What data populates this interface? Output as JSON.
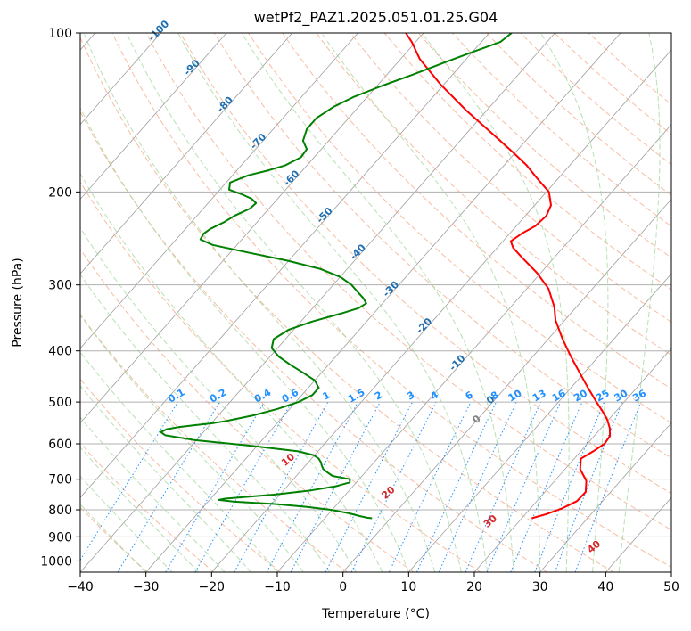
{
  "chart_data": {
    "type": "line",
    "diagram": "skew-t log-p",
    "title": "wetPf2_PAZ1.2025.051.01.25.G04",
    "xlabel": "Temperature (°C)",
    "ylabel": "Pressure (hPa)",
    "xlim": [
      -40,
      50
    ],
    "ylim": [
      1050,
      100
    ],
    "y_scale": "log",
    "grid": true,
    "x_ticks": [
      -40,
      -30,
      -20,
      -10,
      0,
      10,
      20,
      30,
      40,
      50
    ],
    "x_tick_labels": [
      "−40",
      "−30",
      "−20",
      "−10",
      "0",
      "10",
      "20",
      "30",
      "40",
      "50"
    ],
    "y_ticks": [
      100,
      200,
      300,
      400,
      500,
      600,
      700,
      800,
      900,
      1000
    ],
    "y_tick_labels": [
      "100",
      "200",
      "300",
      "400",
      "500",
      "600",
      "700",
      "800",
      "900",
      "1000"
    ],
    "isotherm_labels": [
      "-100",
      "-90",
      "-80",
      "-70",
      "-60",
      "-50",
      "-40",
      "-30",
      "-20",
      "-10",
      "0"
    ],
    "mixing_ratio_labels": [
      "0.1",
      "0.2",
      "0.4",
      "0.6",
      "1",
      "1.5",
      "2",
      "3",
      "4",
      "6",
      "8",
      "10",
      "13",
      "16",
      "20",
      "25",
      "30",
      "36"
    ],
    "dry_adiabat_labels": [
      "10",
      "20",
      "30",
      "40"
    ],
    "colors": {
      "temperature": "#ff0000",
      "dewpoint": "#008000",
      "dry_adiabats": "#f4a582",
      "moist_adiabats": "#a6d8a0",
      "mixing_ratio": "#1e90ff",
      "isotherms": "#9e9e9e"
    },
    "series": [
      {
        "key": "temperature",
        "p": [
          830,
          815,
          795,
          770,
          740,
          705,
          670,
          640,
          620,
          600,
          580,
          560,
          540,
          520,
          500,
          470,
          440,
          410,
          380,
          350,
          330,
          305,
          285,
          265,
          255,
          248,
          240,
          232,
          222,
          212,
          200,
          188,
          178,
          168,
          155,
          140,
          125,
          112,
          104,
          100
        ],
        "t": [
          21.5,
          23.2,
          24.8,
          26.1,
          26.2,
          24.8,
          22.3,
          21.0,
          21.9,
          22.6,
          22.4,
          21.3,
          19.8,
          17.9,
          15.8,
          12.6,
          9.3,
          5.8,
          2.2,
          -1.4,
          -3.4,
          -6.7,
          -10.5,
          -15.2,
          -17.6,
          -18.8,
          -18.2,
          -17.1,
          -16.8,
          -17.5,
          -19.6,
          -23.4,
          -26.6,
          -30.5,
          -36.1,
          -43.2,
          -50.6,
          -57.1,
          -60.6,
          -62.7
        ]
      },
      {
        "key": "dewpoint",
        "p": [
          830,
          828,
          822,
          812,
          800,
          790,
          780,
          772,
          766,
          762,
          748,
          735,
          722,
          710,
          700,
          690,
          680,
          670,
          660,
          650,
          640,
          630,
          620,
          605,
          590,
          578,
          570,
          563,
          558,
          553,
          548,
          543,
          530,
          515,
          500,
          485,
          470,
          455,
          440,
          425,
          410,
          395,
          380,
          365,
          352,
          340,
          332,
          325,
          318,
          310,
          300,
          290,
          280,
          270,
          260,
          252,
          246,
          240,
          235,
          228,
          222,
          215,
          210,
          206,
          202,
          198,
          192,
          186,
          182,
          178,
          172,
          166,
          160,
          152,
          145,
          138,
          132,
          126,
          120,
          114,
          108,
          104,
          100
        ],
        "t": [
          -2.8,
          -3.6,
          -5.0,
          -7.0,
          -10.2,
          -14.2,
          -19.5,
          -26.0,
          -28.6,
          -27.8,
          -20.6,
          -15.8,
          -12.6,
          -11.0,
          -11.4,
          -14.5,
          -15.7,
          -16.8,
          -17.5,
          -18.1,
          -18.9,
          -20.2,
          -23.0,
          -31.0,
          -40.4,
          -45.4,
          -46.5,
          -46.0,
          -44.5,
          -42.2,
          -39.7,
          -38.0,
          -34.7,
          -31.8,
          -29.6,
          -28.4,
          -28.4,
          -30.0,
          -32.8,
          -35.8,
          -38.7,
          -40.9,
          -41.8,
          -40.8,
          -38.3,
          -35.0,
          -33.0,
          -32.5,
          -33.6,
          -35.2,
          -37.2,
          -39.9,
          -44.0,
          -50.1,
          -57.7,
          -63.7,
          -66.3,
          -66.6,
          -66.2,
          -65.0,
          -64.3,
          -62.9,
          -62.7,
          -64.0,
          -66.1,
          -68.6,
          -69.4,
          -67.6,
          -65.2,
          -63.3,
          -62.0,
          -62.2,
          -63.9,
          -64.9,
          -64.9,
          -63.8,
          -62.0,
          -59.3,
          -56.1,
          -53.0,
          -49.6,
          -47.1,
          -46.6
        ]
      }
    ]
  }
}
